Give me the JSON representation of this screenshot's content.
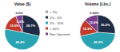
{
  "chart_data": [
    {
      "type": "pie",
      "title": "Value ($)",
      "categories": [
        "< 1%",
        "1% - 5%",
        "5% - 10%",
        "> 10%",
        "Non-Operated"
      ],
      "values": [
        0,
        28.7,
        49.4,
        15.9,
        6.0
      ],
      "value_labels": [
        "0.0%",
        "28.7%",
        "49.4%",
        "15.9%",
        "6.0%"
      ],
      "colors": [
        "#9e9e9e",
        "#1f2a44",
        "#2aa3b3",
        "#c0392b",
        "#7b3f8c"
      ],
      "data_labels": true,
      "legend": "center"
    },
    {
      "type": "pie",
      "title": "Volume (Lbs.)",
      "values": [
        0,
        26.2,
        45.3,
        15.9,
        12.6
      ],
      "value_labels": [
        "0.00%",
        "26.2%",
        "45.3%",
        "15.9%",
        "12.6%"
      ],
      "colors": [
        "#9e9e9e",
        "#1f2a44",
        "#2aa3b3",
        "#c0392b",
        "#7b3f8c"
      ],
      "data_labels": true
    }
  ]
}
